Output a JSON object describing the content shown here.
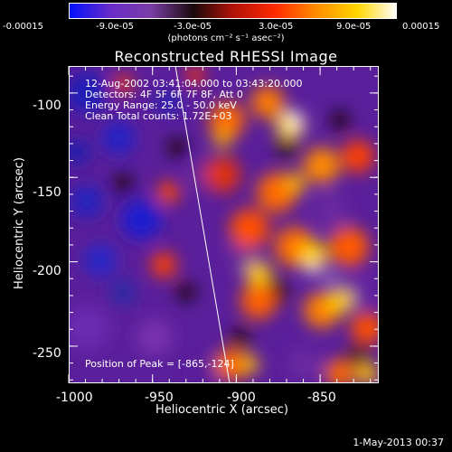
{
  "window": {
    "title": "Reconstructed RHESSI Image",
    "timestamp": "1-May-2013 00:37"
  },
  "colorbar": {
    "tick_labels": [
      "-0.00015",
      "-9.0e-05",
      "-3.0e-05",
      "3.0e-05",
      "9.0e-05",
      "0.00015"
    ],
    "units": "(photons cm⁻² s⁻¹ asec⁻²)",
    "range": [
      -0.00015,
      0.00015
    ],
    "colors": [
      "#0010ff",
      "#6a2cc8",
      "#7a3ea6",
      "#1a0a0a",
      "#b01208",
      "#ff2a00",
      "#ff8a00",
      "#ffd600",
      "#ffffff"
    ]
  },
  "overlay": {
    "line1": "12-Aug-2002 03:41:04.000 to 03:43:20.000",
    "line2": "Detectors: 4F 5F 6F 7F 8F, Att 0",
    "line3": "Energy Range: 25.0 - 50.0 keV",
    "line4": "Clean     Total counts: 1.72E+03",
    "peak": "Position of Peak = [-865,-124]"
  },
  "axes": {
    "xlabel": "Heliocentric X (arcsec)",
    "ylabel": "Heliocentric Y (arcsec)",
    "xticks": [
      "-1000",
      "-950",
      "-900",
      "-850"
    ],
    "yticks": [
      "-100",
      "-150",
      "-200",
      "-250"
    ],
    "xlim": [
      -1000,
      -815
    ],
    "ylim": [
      -272,
      -84
    ]
  }
}
